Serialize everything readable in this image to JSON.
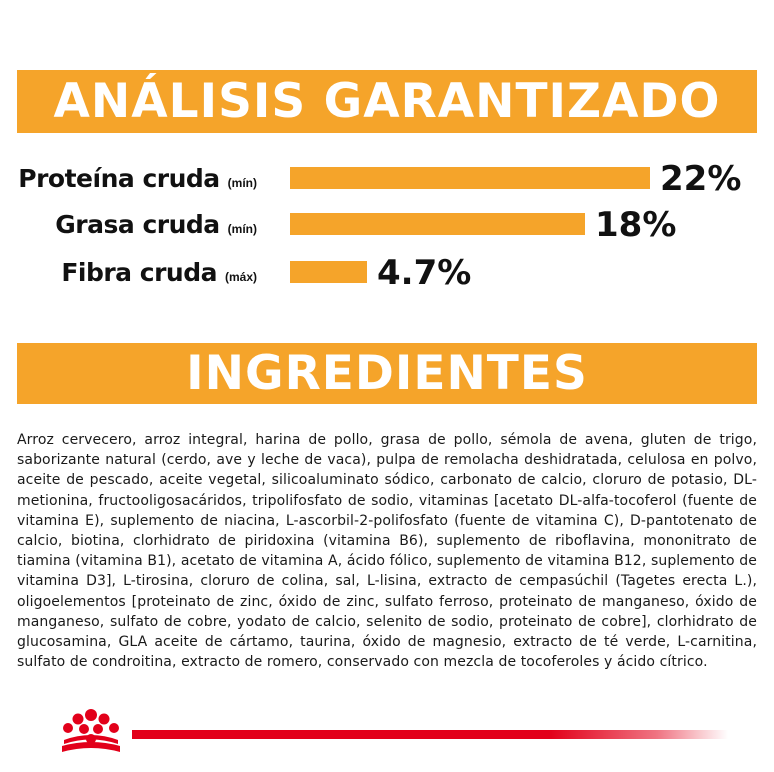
{
  "analysis": {
    "title": "ANÁLISIS GARANTIZADO",
    "rows": [
      {
        "name": "Proteína cruda",
        "qualifier": "(mín)",
        "value": "22%",
        "level": 22
      },
      {
        "name": "Grasa cruda",
        "qualifier": "(mín)",
        "value": "18%",
        "level": 18
      },
      {
        "name": "Fibra cruda",
        "qualifier": "(máx)",
        "value": "4.7%",
        "level": 4.7
      }
    ],
    "bar_color": "#F5A42A"
  },
  "ingredients": {
    "title": "INGREDIENTES",
    "text": "Arroz cervecero, arroz integral, harina de pollo, grasa de pollo, sémola de avena, gluten de trigo, saborizante natural (cerdo, ave y leche de vaca), pulpa de remolacha deshidratada, celulosa en polvo, aceite de pescado, aceite vegetal, silicoaluminato sódico, carbonato de calcio, cloruro de potasio, DL-metionina, fructooligosacáridos, tripolifosfato de sodio, vitaminas [acetato DL-alfa-tocoferol (fuente de vitamina E), suplemento de niacina, L-ascorbil-2-polifosfato (fuente de vitamina C), D-pantotenato de calcio, biotina, clorhidrato de piridoxina (vitamina B6), suplemento de riboflavina, mononitrato de tiamina (vitamina B1), acetato de vitamina A, ácido fólico, suplemento de vitamina B12, suplemento de vitamina D3], L-tirosina, cloruro de colina, sal, L-lisina, extracto de cempasúchil (Tagetes erecta L.), oligoelementos [proteinato de zinc, óxido de zinc, sulfato ferroso, proteinato de manganeso, óxido de manganeso, sulfato de cobre, yodato de calcio, selenito de sodio, proteinato de cobre], clorhidrato de glucosamina, GLA aceite de cártamo, taurina, óxido de magnesio, extracto de té verde, L-carnitina, sulfato de condroitina, extracto de romero, conservado con mezcla de tocoferoles y ácido cítrico."
  },
  "colors": {
    "accent": "#F5A42A",
    "brand_red": "#E2001A"
  },
  "footer": {
    "logo_icon": "royal-canin-crown-icon"
  }
}
